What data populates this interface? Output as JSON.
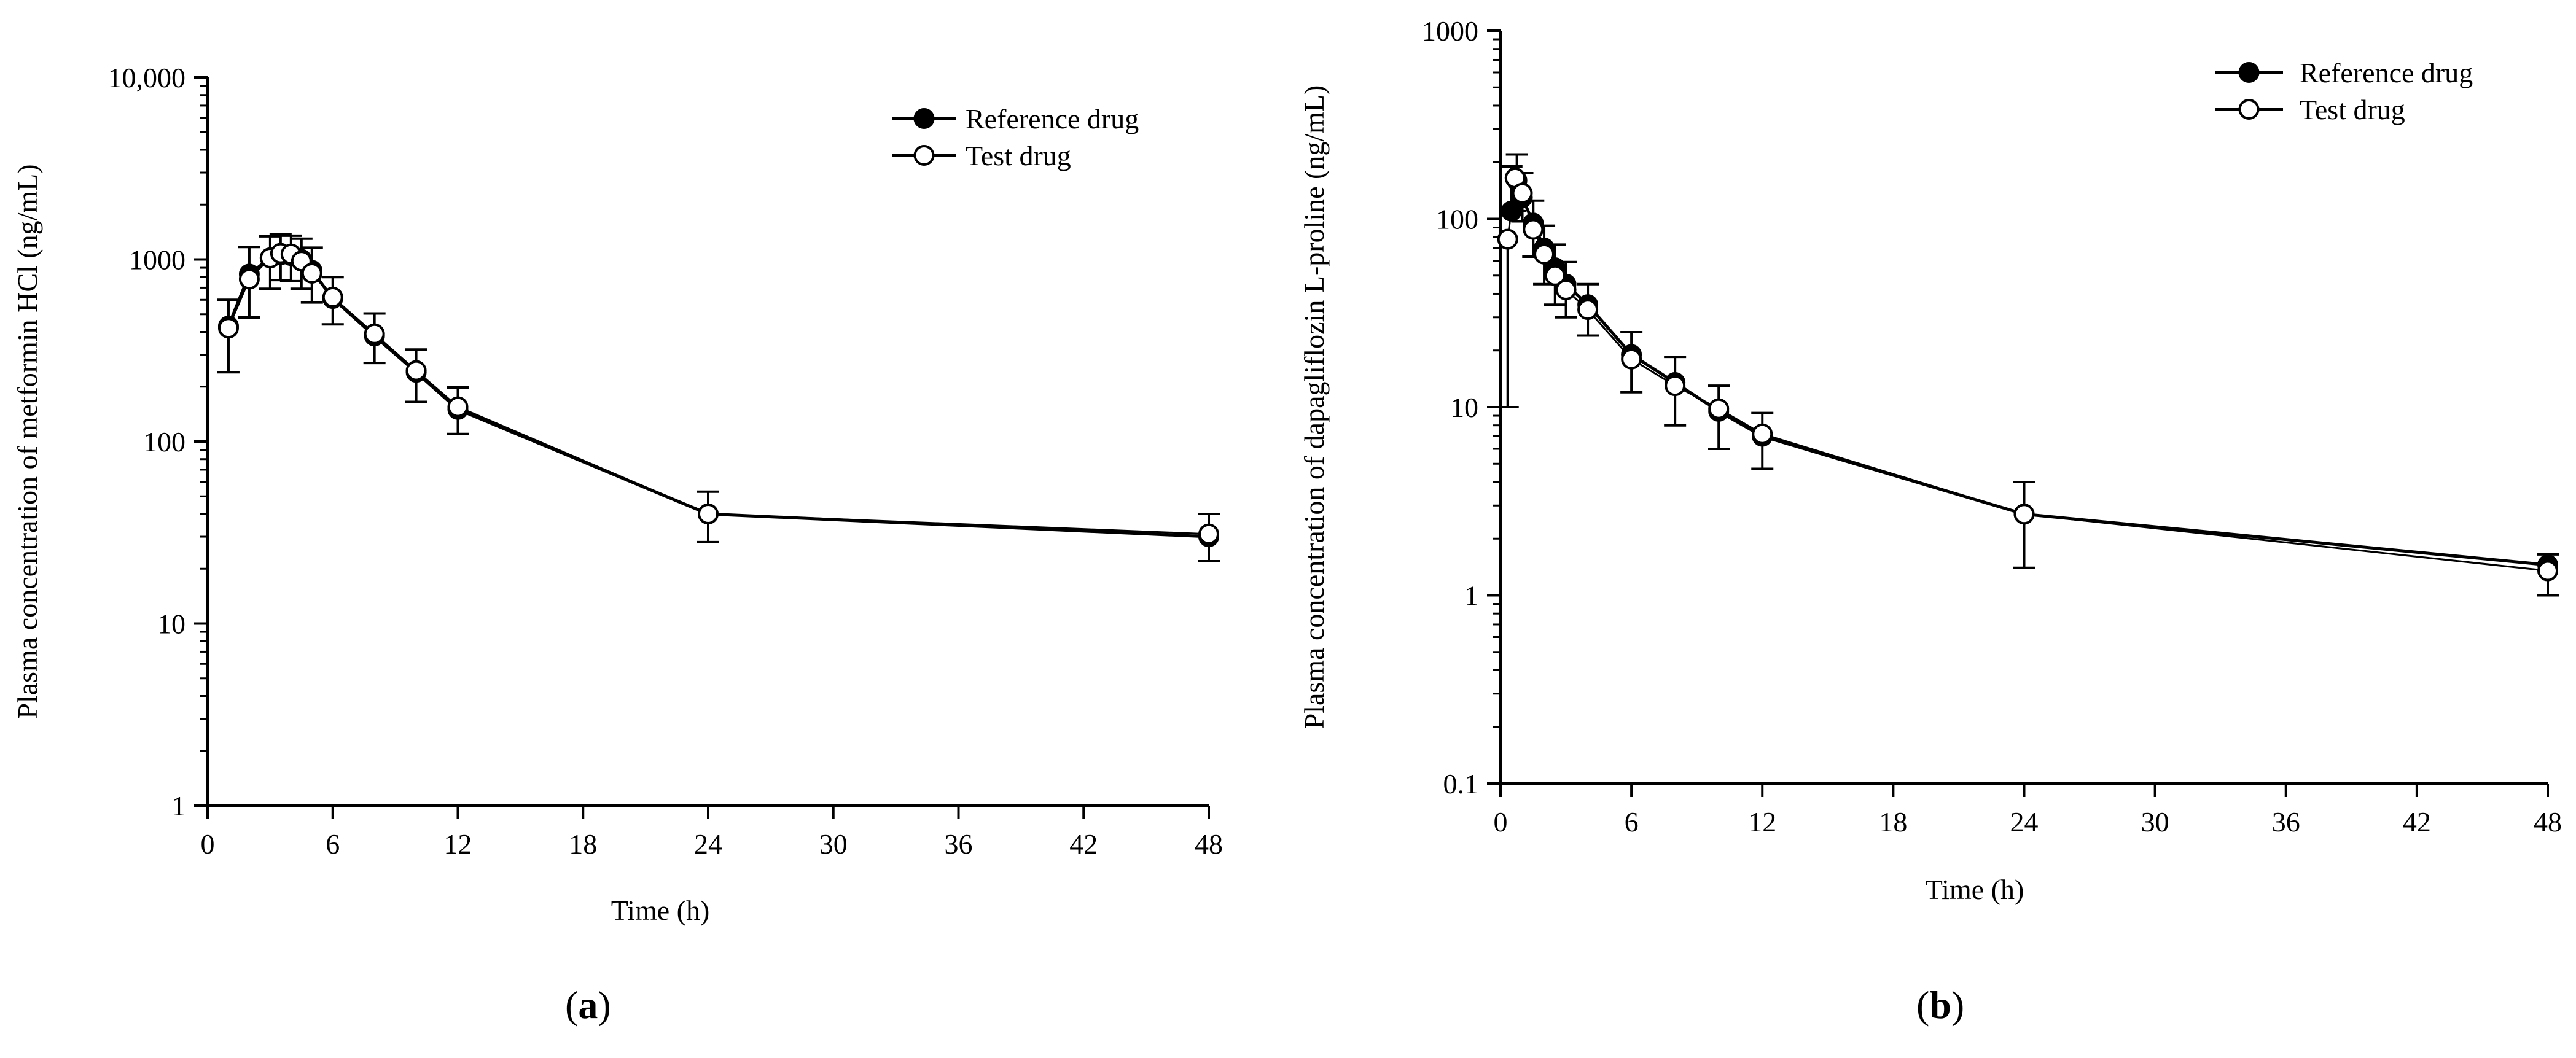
{
  "chart_data": [
    {
      "id": "a",
      "type": "line",
      "panel_label": "a",
      "title": "",
      "xlabel": "Time (h)",
      "ylabel": "Plasma concentration of metformin HCl (ng/mL)",
      "yscale": "log",
      "xlim": [
        0,
        48
      ],
      "ylim": [
        1,
        10000
      ],
      "x_ticks": [
        0,
        6,
        12,
        18,
        24,
        30,
        36,
        42,
        48
      ],
      "y_ticks": [
        1,
        10,
        100,
        1000,
        10000
      ],
      "y_tick_labels": [
        "1",
        "10",
        "100",
        "1000",
        "10,000"
      ],
      "legend_position": "top-right",
      "series": [
        {
          "name": "Reference drug",
          "marker": "filled-circle",
          "x": [
            1,
            2,
            3,
            3.5,
            4,
            4.5,
            5,
            6,
            8,
            10,
            12,
            24,
            48
          ],
          "values": [
            430,
            830,
            1020,
            1060,
            1050,
            1000,
            870,
            610,
            380,
            240,
            150,
            40,
            30
          ],
          "error": [
            170,
            340,
            320,
            310,
            300,
            300,
            290,
            190,
            125,
            80,
            48,
            13,
            10
          ]
        },
        {
          "name": "Test drug",
          "marker": "open-circle",
          "x": [
            1,
            2,
            3,
            3.5,
            4,
            4.5,
            5,
            6,
            8,
            10,
            12,
            24,
            48
          ],
          "values": [
            420,
            780,
            1020,
            1080,
            1070,
            980,
            840,
            620,
            390,
            245,
            155,
            40,
            31
          ],
          "error": [
            180,
            300,
            330,
            310,
            310,
            290,
            260,
            180,
            120,
            80,
            45,
            12,
            9
          ]
        }
      ]
    },
    {
      "id": "b",
      "type": "line",
      "panel_label": "b",
      "title": "",
      "xlabel": "Time (h)",
      "ylabel": "Plasma concentration of dapagliflozin L-proline (ng/mL)",
      "yscale": "log",
      "xlim": [
        0,
        48
      ],
      "ylim": [
        0.1,
        1000
      ],
      "x_ticks": [
        0,
        6,
        12,
        18,
        24,
        30,
        36,
        42,
        48
      ],
      "y_ticks": [
        0.1,
        1,
        10,
        100,
        1000
      ],
      "y_tick_labels": [
        "0.1",
        "1",
        "10",
        "100",
        "1000"
      ],
      "legend_position": "top-right",
      "series": [
        {
          "name": "Reference drug",
          "marker": "filled-circle",
          "x": [
            0.5,
            0.75,
            1,
            1.5,
            2,
            2.5,
            3,
            4,
            6,
            8,
            10,
            12,
            24,
            48
          ],
          "values": [
            110,
            160,
            130,
            95,
            70,
            55,
            45,
            35,
            19,
            13.5,
            9.5,
            7,
            2.7,
            1.45
          ],
          "error": [
            80,
            60,
            45,
            30,
            22,
            18,
            14,
            10,
            6,
            5,
            3.5,
            2.3,
            1.3,
            0.2
          ]
        },
        {
          "name": "Test drug",
          "marker": "open-circle",
          "x": [
            0.33,
            0.67,
            1,
            1.5,
            2,
            2.5,
            3,
            4,
            6,
            8,
            10,
            12,
            24,
            48
          ],
          "values": [
            78,
            165,
            137,
            88,
            65,
            50,
            42,
            33,
            18,
            13,
            9.8,
            7.2,
            2.7,
            1.35
          ],
          "error": [
            68,
            55,
            40,
            25,
            20,
            15,
            12,
            9,
            6,
            5,
            3.8,
            2.5,
            1.3,
            0.35
          ]
        }
      ]
    }
  ],
  "panel_labels": {
    "a": "a",
    "b": "b"
  }
}
